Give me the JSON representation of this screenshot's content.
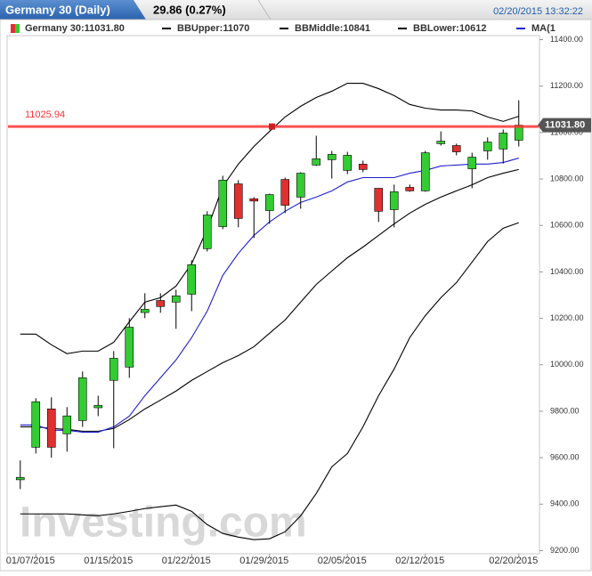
{
  "header": {
    "title": "Germany 30 (Daily)",
    "change": "29.86 (0.27%)",
    "datetime": "02/20/2015 13:32:22"
  },
  "chart_data": {
    "type": "candlestick",
    "name": "Germany 30:11031.80",
    "up_color": "#33cc33",
    "down_color": "#e03030",
    "categories": [
      null,
      "01/07/2015",
      null,
      null,
      null,
      null,
      "01/15/2015",
      null,
      null,
      null,
      null,
      "01/22/2015",
      null,
      null,
      null,
      null,
      "01/29/2015",
      null,
      null,
      null,
      null,
      "02/05/2015",
      null,
      null,
      null,
      null,
      "02/12/2015",
      null,
      null,
      null,
      null,
      null,
      "02/20/2015"
    ],
    "open": [
      9505,
      9645,
      9810,
      9703,
      9760,
      9815,
      9933,
      9990,
      10225,
      10277,
      10270,
      10304,
      10500,
      10595,
      10779,
      10715,
      10664,
      10798,
      10722,
      10860,
      10883,
      10837,
      10864,
      10760,
      10668,
      10764,
      10749,
      10952,
      10944,
      10844,
      10921,
      10929,
      10967
    ],
    "high": [
      9588,
      9856,
      9860,
      9818,
      9971,
      9867,
      10059,
      10201,
      10308,
      10308,
      10323,
      10450,
      10661,
      10814,
      10795,
      10722,
      10737,
      10806,
      10829,
      10986,
      10921,
      10917,
      10879,
      10760,
      10776,
      10776,
      10921,
      11005,
      10952,
      10913,
      10979,
      11013,
      11139
    ],
    "low": [
      9465,
      9618,
      9600,
      9626,
      9733,
      9779,
      9641,
      9944,
      10201,
      10224,
      10155,
      10231,
      10488,
      10584,
      10592,
      10546,
      10607,
      10653,
      10672,
      10856,
      10802,
      10821,
      10829,
      10615,
      10592,
      10745,
      10745,
      10944,
      10902,
      10760,
      10883,
      10867,
      10940
    ],
    "close": [
      9515,
      9841,
      9645,
      9780,
      9944,
      9825,
      10028,
      10162,
      10239,
      10251,
      10297,
      10431,
      10645,
      10795,
      10630,
      10705,
      10733,
      10687,
      10825,
      10887,
      10906,
      10902,
      10841,
      10661,
      10745,
      10749,
      10913,
      10963,
      10917,
      10894,
      10959,
      10998,
      11031.8
    ],
    "series": [
      {
        "name": "BBUpper:11070",
        "color": "#000000",
        "values": [
          10132,
          10132,
          10086,
          10048,
          10059,
          10059,
          10097,
          10185,
          10270,
          10289,
          10339,
          10435,
          10584,
          10768,
          10864,
          10940,
          11005,
          11067,
          11113,
          11151,
          11178,
          11212,
          11212,
          11189,
          11159,
          11121,
          11105,
          11097,
          11097,
          11093,
          11067,
          11048,
          11070
        ]
      },
      {
        "name": "BBMiddle:10841",
        "color": "#000000",
        "values": [
          9733,
          9733,
          9726,
          9722,
          9714,
          9714,
          9726,
          9764,
          9810,
          9848,
          9887,
          9933,
          9971,
          10009,
          10040,
          10078,
          10136,
          10193,
          10270,
          10346,
          10404,
          10461,
          10507,
          10557,
          10607,
          10653,
          10691,
          10722,
          10749,
          10775,
          10806,
          10825,
          10841
        ]
      },
      {
        "name": "BBLower:10612",
        "color": "#000000",
        "values": [
          9358,
          9358,
          9358,
          9358,
          9354,
          9350,
          9358,
          9369,
          9381,
          9389,
          9396,
          9369,
          9312,
          9274,
          9258,
          9247,
          9251,
          9281,
          9350,
          9446,
          9561,
          9618,
          9733,
          9867,
          9982,
          10117,
          10212,
          10289,
          10354,
          10442,
          10531,
          10588,
          10612
        ]
      },
      {
        "name": "MA(1",
        "color": "#1f1fd0",
        "values": [
          9741,
          9741,
          9718,
          9718,
          9710,
          9710,
          9733,
          9779,
          9867,
          9944,
          10021,
          10117,
          10231,
          10385,
          10480,
          10557,
          10615,
          10661,
          10699,
          10722,
          10749,
          10787,
          10806,
          10806,
          10806,
          10825,
          10837,
          10856,
          10860,
          10864,
          10864,
          10871,
          10890
        ]
      }
    ],
    "hline": {
      "value": 11025.94,
      "label": "11025.94",
      "color": "#ff3333"
    },
    "price_tag": {
      "value": 11031.8,
      "label": "11031.80"
    },
    "ylim": [
      9175,
      11425
    ],
    "yticks": [
      {
        "value": 9200,
        "label": "9200.00"
      },
      {
        "value": 9400,
        "label": "9400.00"
      },
      {
        "value": 9600,
        "label": "9600.00"
      },
      {
        "value": 9800,
        "label": "9800.00"
      },
      {
        "value": 10000,
        "label": "10000.00"
      },
      {
        "value": 10200,
        "label": "10200.00"
      },
      {
        "value": 10400,
        "label": "10400.00"
      },
      {
        "value": 10600,
        "label": "10600.00"
      },
      {
        "value": 10800,
        "label": "10800.00"
      },
      {
        "value": 11000,
        "label": "11000.00"
      },
      {
        "value": 11200,
        "label": "11200.00"
      },
      {
        "value": 11400,
        "label": "11400.00"
      }
    ],
    "watermark": "Investing.com"
  }
}
